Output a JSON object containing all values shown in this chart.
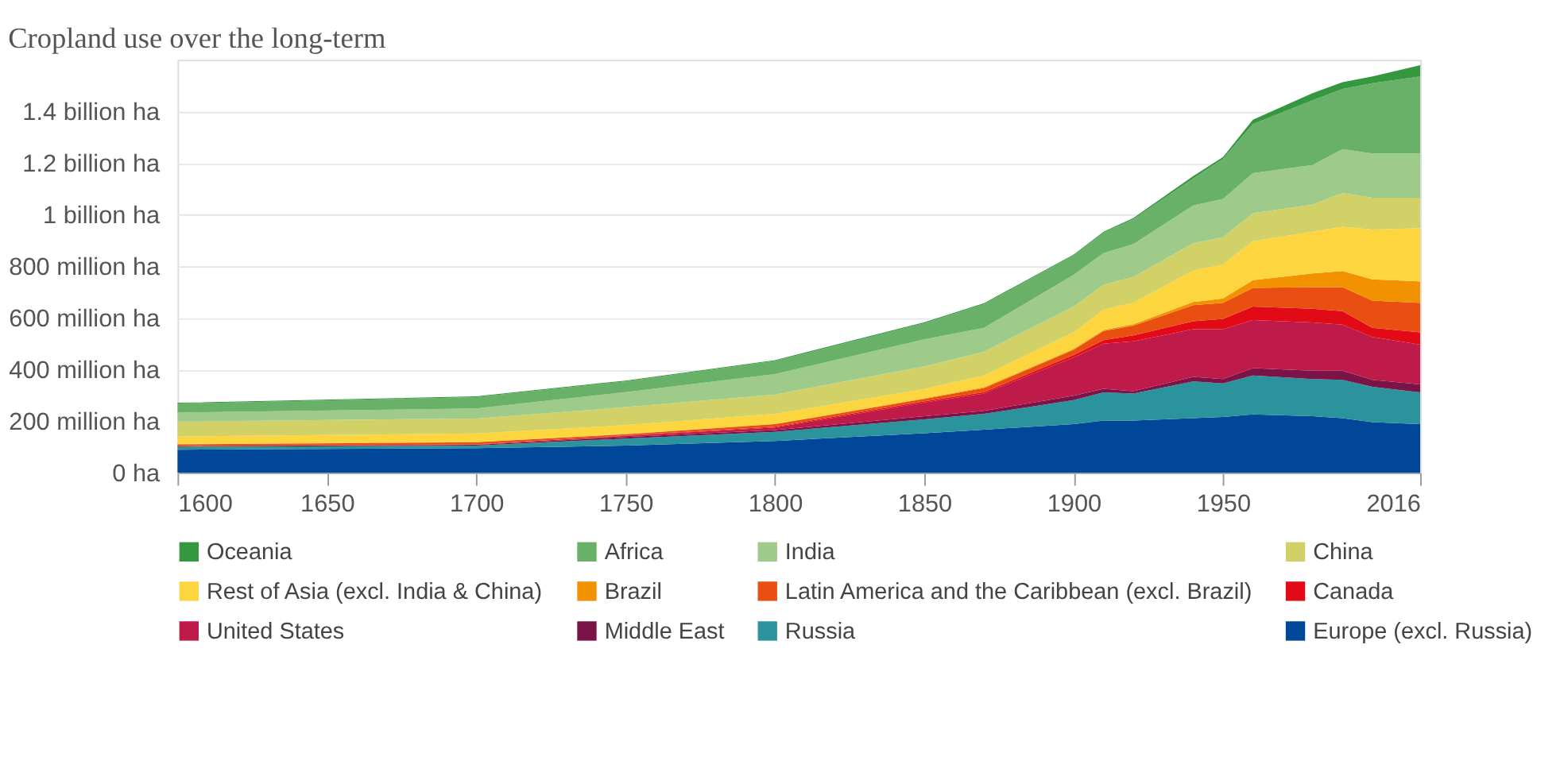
{
  "chart_data": {
    "type": "area",
    "title": "Cropland use over the long-term",
    "stacked": true,
    "x": [
      1600,
      1700,
      1750,
      1800,
      1850,
      1870,
      1900,
      1910,
      1920,
      1940,
      1950,
      1960,
      1980,
      1990,
      2000,
      2016
    ],
    "xlim": [
      1600,
      2016
    ],
    "xticks": [
      1600,
      1650,
      1700,
      1750,
      1800,
      1850,
      1900,
      1950,
      2016
    ],
    "ylim": [
      0,
      1600000000
    ],
    "yticks": [
      {
        "value": 0,
        "label": "0 ha"
      },
      {
        "value": 200000000,
        "label": "200 million ha"
      },
      {
        "value": 400000000,
        "label": "400 million ha"
      },
      {
        "value": 600000000,
        "label": "600 million ha"
      },
      {
        "value": 800000000,
        "label": "800 million ha"
      },
      {
        "value": 1000000000,
        "label": "1 billion ha"
      },
      {
        "value": 1200000000,
        "label": "1.2 billion ha"
      },
      {
        "value": 1400000000,
        "label": "1.4 billion ha"
      }
    ],
    "grid": "y",
    "legend": "bottom",
    "series": [
      {
        "name": "Europe (excl. Russia)",
        "color": "#00479a",
        "values": [
          89000000,
          95000000,
          105000000,
          123000000,
          153000000,
          167000000,
          188000000,
          202000000,
          202000000,
          211000000,
          216000000,
          226000000,
          219000000,
          211000000,
          196000000,
          188000000
        ]
      },
      {
        "name": "Russia",
        "color": "#2a939b",
        "values": [
          11000000,
          10000000,
          27000000,
          35000000,
          54000000,
          61000000,
          93000000,
          109000000,
          105000000,
          143000000,
          130000000,
          151000000,
          144000000,
          149000000,
          137000000,
          123000000
        ]
      },
      {
        "name": "Middle East",
        "color": "#7a1448",
        "values": [
          3000000,
          3000000,
          6000000,
          7000000,
          12000000,
          12000000,
          17000000,
          14000000,
          9000000,
          17000000,
          17000000,
          28000000,
          32000000,
          35000000,
          27000000,
          31000000
        ]
      },
      {
        "name": "United States",
        "color": "#be1a4a",
        "values": [
          1000000,
          2000000,
          5000000,
          10000000,
          53000000,
          67000000,
          149000000,
          175000000,
          193000000,
          185000000,
          193000000,
          186000000,
          187000000,
          179000000,
          166000000,
          154000000
        ]
      },
      {
        "name": "Canada",
        "color": "#e30a17",
        "values": [
          0,
          0,
          1000000,
          3000000,
          5000000,
          5000000,
          9000000,
          14000000,
          23000000,
          31000000,
          40000000,
          53000000,
          53000000,
          52000000,
          35000000,
          48000000
        ]
      },
      {
        "name": "Latin America and the Caribbean (excl. Brazil)",
        "color": "#e84f10",
        "values": [
          6000000,
          8000000,
          5000000,
          10000000,
          9000000,
          16000000,
          20000000,
          35000000,
          38000000,
          62000000,
          62000000,
          72000000,
          84000000,
          93000000,
          106000000,
          114000000
        ]
      },
      {
        "name": "Brazil",
        "color": "#f39200",
        "values": [
          1000000,
          1000000,
          1000000,
          1000000,
          2000000,
          3000000,
          4000000,
          4000000,
          5000000,
          12000000,
          17000000,
          30000000,
          53000000,
          62000000,
          82000000,
          83000000
        ]
      },
      {
        "name": "Rest of Asia (excl. India & China)",
        "color": "#fdd53f",
        "values": [
          29000000,
          33000000,
          34000000,
          39000000,
          36000000,
          46000000,
          64000000,
          79000000,
          83000000,
          123000000,
          132000000,
          151000000,
          162000000,
          172000000,
          193000000,
          206000000
        ]
      },
      {
        "name": "China",
        "color": "#d1d168",
        "values": [
          58000000,
          58000000,
          70000000,
          75000000,
          88000000,
          91000000,
          100000000,
          96000000,
          100000000,
          105000000,
          105000000,
          108000000,
          105000000,
          131000000,
          123000000,
          118000000
        ]
      },
      {
        "name": "India",
        "color": "#9ecb8a",
        "values": [
          35000000,
          39000000,
          58000000,
          79000000,
          105000000,
          93000000,
          123000000,
          123000000,
          128000000,
          146000000,
          149000000,
          156000000,
          153000000,
          170000000,
          172000000,
          172000000
        ]
      },
      {
        "name": "Africa",
        "color": "#69b168",
        "values": [
          35000000,
          44000000,
          42000000,
          51000000,
          62000000,
          92000000,
          75000000,
          79000000,
          96000000,
          105000000,
          155000000,
          190000000,
          251000000,
          233000000,
          272000000,
          298000000
        ]
      },
      {
        "name": "Oceania",
        "color": "#35983f",
        "values": [
          3000000,
          3000000,
          3000000,
          3000000,
          4000000,
          4000000,
          3000000,
          4000000,
          5000000,
          9000000,
          7000000,
          17000000,
          28000000,
          26000000,
          26000000,
          44000000
        ]
      }
    ]
  }
}
